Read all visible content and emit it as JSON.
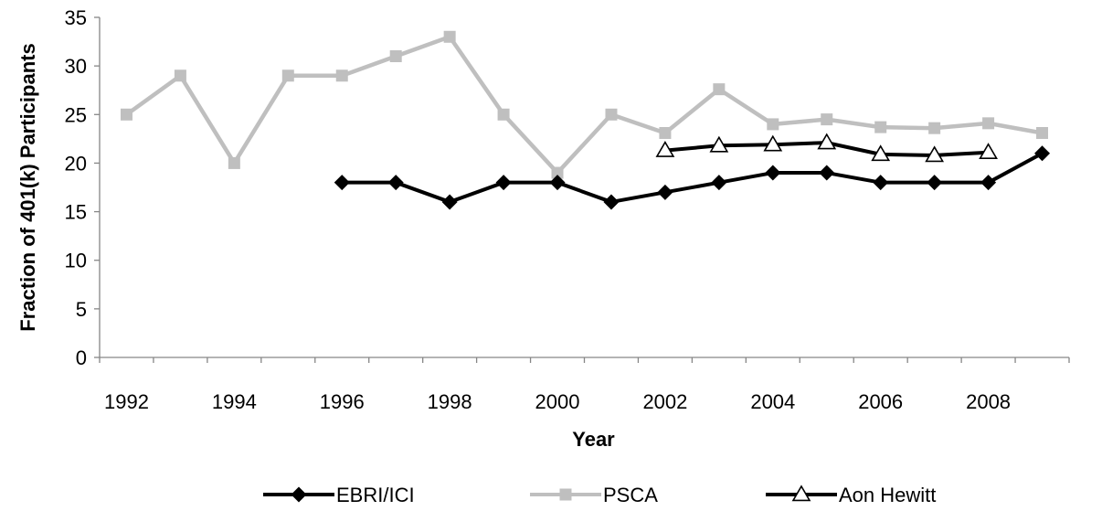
{
  "chart_data": {
    "type": "line",
    "title": "",
    "xlabel": "Year",
    "ylabel": "Fraction of 401(k) Participants",
    "xlim": [
      1991.5,
      2009.5
    ],
    "ylim": [
      0,
      35
    ],
    "x_ticks": [
      1992,
      1994,
      1996,
      1998,
      2000,
      2002,
      2004,
      2006,
      2008
    ],
    "x_minor_ticks": [
      1992,
      1993,
      1994,
      1995,
      1996,
      1997,
      1998,
      1999,
      2000,
      2001,
      2002,
      2003,
      2004,
      2005,
      2006,
      2007,
      2008,
      2009
    ],
    "y_ticks": [
      0,
      5,
      10,
      15,
      20,
      25,
      30,
      35
    ],
    "grid": false,
    "legend_position": "bottom",
    "series": [
      {
        "name": "EBRI/ICI",
        "color": "#000000",
        "marker": "diamond",
        "points": [
          [
            1996,
            18
          ],
          [
            1997,
            18
          ],
          [
            1998,
            16
          ],
          [
            1999,
            18
          ],
          [
            2000,
            18
          ],
          [
            2001,
            16
          ],
          [
            2002,
            17
          ],
          [
            2003,
            18
          ],
          [
            2004,
            19
          ],
          [
            2005,
            19
          ],
          [
            2006,
            18
          ],
          [
            2007,
            18
          ],
          [
            2008,
            18
          ],
          [
            2009,
            21
          ]
        ]
      },
      {
        "name": "PSCA",
        "color": "#bfbfbf",
        "marker": "square",
        "points": [
          [
            1992,
            25
          ],
          [
            1993,
            29
          ],
          [
            1994,
            20
          ],
          [
            1995,
            29
          ],
          [
            1996,
            29
          ],
          [
            1997,
            31
          ],
          [
            1998,
            33
          ],
          [
            1999,
            25
          ],
          [
            2000,
            19
          ],
          [
            2001,
            25
          ],
          [
            2002,
            23.1
          ],
          [
            2003,
            27.6
          ],
          [
            2004,
            24
          ],
          [
            2005,
            24.5
          ],
          [
            2006,
            23.7
          ],
          [
            2007,
            23.6
          ],
          [
            2008,
            24.1
          ],
          [
            2009,
            23.1
          ]
        ]
      },
      {
        "name": "Aon Hewitt",
        "color": "#000000",
        "marker": "triangle-open",
        "points": [
          [
            2002,
            21.3
          ],
          [
            2003,
            21.8
          ],
          [
            2004,
            21.9
          ],
          [
            2005,
            22.1
          ],
          [
            2006,
            20.9
          ],
          [
            2007,
            20.8
          ],
          [
            2008,
            21.1
          ]
        ]
      }
    ]
  }
}
